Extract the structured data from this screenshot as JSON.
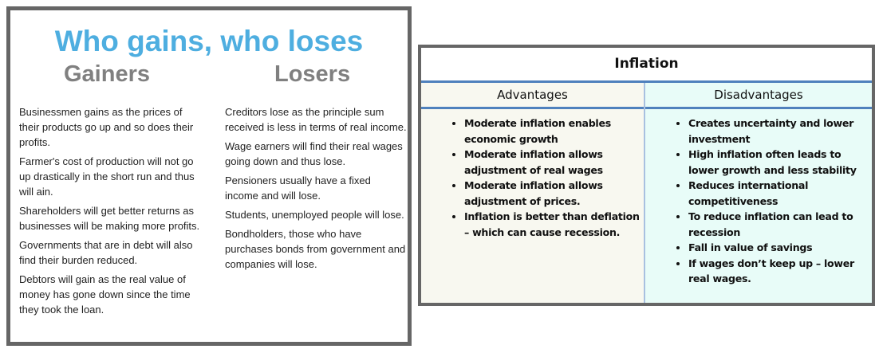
{
  "left_panel": {
    "title": "Who gains, who loses",
    "gainers_heading": "Gainers",
    "losers_heading": "Losers",
    "gainers": [
      "Businessmen gains as the prices of their products go up and so does their profits.",
      "Farmer's cost of production will not go up drastically in the short run and thus will ain.",
      "Shareholders will get better returns as businesses will be making more profits.",
      "Governments that are in debt will also find their burden reduced.",
      "Debtors will gain as the real value of money has gone down since the time they took the loan."
    ],
    "losers": [
      "Creditors lose as the principle sum received is less in terms of real income.",
      "Wage earners will find their real wages going down and thus lose.",
      "Pensioners usually have a fixed income and will lose.",
      "Students, unemployed people will lose.",
      "Bondholders, those who have purchases bonds from government and companies will lose."
    ]
  },
  "right_panel": {
    "title": "Inflation",
    "advantages_heading": "Advantages",
    "disadvantages_heading": "Disadvantages",
    "advantages": [
      "Moderate inflation enables economic growth",
      "Moderate inflation allows adjustment of real wages",
      "Moderate inflation allows adjustment of prices.",
      "Inflation is better than deflation – which can cause recession."
    ],
    "disadvantages": [
      "Creates uncertainty and lower investment",
      "High inflation often leads to lower growth and less stability",
      "Reduces international competitiveness",
      "To reduce inflation can lead to recession",
      "Fall in value of savings",
      "If wages don’t keep up – lower real wages."
    ],
    "colors": {
      "advantages_bg": "#f8f8f0",
      "disadvantages_bg": "#e8fcf8",
      "rule": "#4f81bd"
    }
  }
}
